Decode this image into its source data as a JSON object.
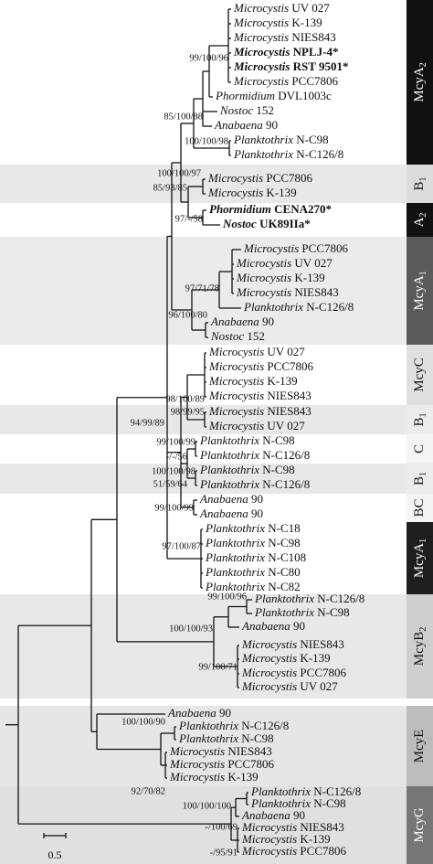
{
  "leaves": [
    {
      "genus": "Microcystis",
      "strain": "UV 027"
    },
    {
      "genus": "Microcystis",
      "strain": "K-139"
    },
    {
      "genus": "Microcystis",
      "strain": "NIES843"
    },
    {
      "genus": "Microcystis",
      "strain": "NPLJ-4*",
      "bold": true
    },
    {
      "genus": "Microcystis",
      "strain": "RST 9501*",
      "bold": true
    },
    {
      "genus": "Microcystis",
      "strain": "PCC7806"
    },
    {
      "genus": "Phormidium",
      "strain": "DVL1003c"
    },
    {
      "genus": "Nostoc",
      "strain": "152"
    },
    {
      "genus": "Anabaena",
      "strain": "90"
    },
    {
      "genus": "Planktothrix",
      "strain": "N-C98"
    },
    {
      "genus": "Planktothrix",
      "strain": "N-C126/8"
    },
    {
      "genus": "Microcystis",
      "strain": "PCC7806"
    },
    {
      "genus": "Microcystis",
      "strain": "K-139"
    },
    {
      "genus": "Phormidium",
      "strain": "CENA270*",
      "bold": true
    },
    {
      "genus": "Nostoc",
      "strain": "UK89IIa*",
      "bold": true
    },
    {
      "genus": "Microcystis",
      "strain": "PCC7806"
    },
    {
      "genus": "Microcystis",
      "strain": "UV 027"
    },
    {
      "genus": "Microcystis",
      "strain": "K-139"
    },
    {
      "genus": "Microcystis",
      "strain": "NIES843"
    },
    {
      "genus": "Planktothrix",
      "strain": "N-C126/8"
    },
    {
      "genus": "Anabaena",
      "strain": "90"
    },
    {
      "genus": "Nostoc",
      "strain": "152"
    },
    {
      "genus": "Microcystis",
      "strain": "UV 027"
    },
    {
      "genus": "Microcystis",
      "strain": "PCC7806"
    },
    {
      "genus": "Microcystis",
      "strain": "K-139"
    },
    {
      "genus": "Microcystis",
      "strain": "NIES843"
    },
    {
      "genus": "Microcystis",
      "strain": "NIES843"
    },
    {
      "genus": "Microcystis",
      "strain": "UV 027"
    },
    {
      "genus": "Planktothrix",
      "strain": "N-C98"
    },
    {
      "genus": "Planktothrix",
      "strain": "N-C126/8"
    },
    {
      "genus": "Planktothrix",
      "strain": "N-C98"
    },
    {
      "genus": "Planktothrix",
      "strain": "N-C126/8"
    },
    {
      "genus": "Anabaena",
      "strain": "90"
    },
    {
      "genus": "Anabaena",
      "strain": "90"
    },
    {
      "genus": "Planktothrix",
      "strain": "N-C18"
    },
    {
      "genus": "Planktothrix",
      "strain": "N-C98"
    },
    {
      "genus": "Planktothrix",
      "strain": "N-C108"
    },
    {
      "genus": "Planktothrix",
      "strain": "N-C80"
    },
    {
      "genus": "Planktothrix",
      "strain": "N-C82"
    },
    {
      "genus": "Planktothrix",
      "strain": "N-C126/8"
    },
    {
      "genus": "Planktothrix",
      "strain": "N-C98"
    },
    {
      "genus": "Anabaena",
      "strain": "90"
    },
    {
      "genus": "Microcystis",
      "strain": "NIES843"
    },
    {
      "genus": "Microcystis",
      "strain": "K-139"
    },
    {
      "genus": "Microcystis",
      "strain": "PCC7806"
    },
    {
      "genus": "Microcystis",
      "strain": "UV 027"
    },
    {
      "genus": "Anabaena",
      "strain": "90"
    },
    {
      "genus": "Planktothrix",
      "strain": "N-C126/8"
    },
    {
      "genus": "Planktothrix",
      "strain": "N-C98"
    },
    {
      "genus": "Microcystis",
      "strain": "NIES843"
    },
    {
      "genus": "Microcystis",
      "strain": "PCC7806"
    },
    {
      "genus": "Microcystis",
      "strain": "K-139"
    },
    {
      "genus": "Planktothrix",
      "strain": "N-C126/8"
    },
    {
      "genus": "Planktothrix",
      "strain": "N-C98"
    },
    {
      "genus": "Anabaena",
      "strain": "90"
    },
    {
      "genus": "Microcystis",
      "strain": "NIES843"
    },
    {
      "genus": "Microcystis",
      "strain": "K-139"
    },
    {
      "genus": "Microcystis",
      "strain": "PCC7806"
    }
  ],
  "support": [
    "99/100/96",
    "85/100/88",
    "100/100/98",
    "100/100/97",
    "85/93/85",
    "97/-/58",
    "97/71/78",
    "96/100/80",
    "98/100/89",
    "94/99/89",
    "98/99/95",
    "99/100/99",
    "-/-/56",
    "100/100/98",
    "51/59/64",
    "99/100/99",
    "97/100/87",
    "99/100/96",
    "100/100/93",
    "99/100/71",
    "100/100/90",
    "92/70/82",
    "100/100/100",
    "-/100/69",
    "-/95/91"
  ],
  "groups": [
    {
      "label": "McyA",
      "sub": "2"
    },
    {
      "label": "B",
      "sub": "1"
    },
    {
      "label": "A",
      "sub": "2"
    },
    {
      "label": "McyA",
      "sub": "1"
    },
    {
      "label": "McyC"
    },
    {
      "label": "B",
      "sub": "1"
    },
    {
      "label": "C"
    },
    {
      "label": "B",
      "sub": "1"
    },
    {
      "label": "BC"
    },
    {
      "label": "McyA",
      "sub": "1"
    },
    {
      "label": "McyB",
      "sub": "2"
    },
    {
      "label": "McyE"
    },
    {
      "label": "McyG"
    }
  ],
  "scale_bar": "0.5"
}
